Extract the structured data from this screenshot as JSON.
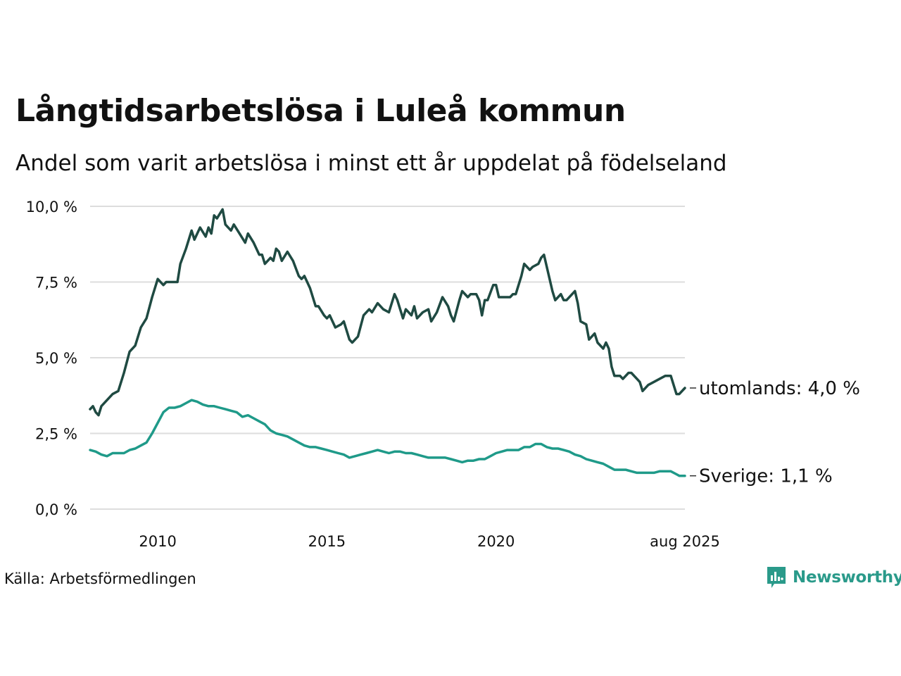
{
  "title": "Långtidsarbetslösa i Luleå kommun",
  "subtitle": "Andel som varit arbetslösa i minst ett år uppdelat på födelseland",
  "source": "Källa: Arbetsförmedlingen",
  "brand": {
    "name": "Newsworthy",
    "icon": "newsworthy-logo-icon",
    "color": "#2a9a8a"
  },
  "chart_data": {
    "type": "line",
    "ylim": [
      0,
      10
    ],
    "y_ticks": [
      0,
      2.5,
      5,
      7.5,
      10
    ],
    "y_tick_labels": [
      "0,0 %",
      "2,5 %",
      "5,0 %",
      "7,5 %",
      "10,0 %"
    ],
    "x_range": [
      "2008-01",
      "2025-08"
    ],
    "x_ticks": [
      "2010-01",
      "2015-01",
      "2020-01",
      "2025-08"
    ],
    "x_tick_labels": [
      "2010",
      "2015",
      "2020",
      "aug 2025"
    ],
    "grid": "horizontal",
    "legend": "end-of-line labels",
    "series": [
      {
        "name": "utomlands",
        "end_label": "utomlands: 4,0 %",
        "color": "#1f4a42",
        "points": [
          [
            "2008-01",
            3.3
          ],
          [
            "2008-02",
            3.4
          ],
          [
            "2008-03",
            3.2
          ],
          [
            "2008-04",
            3.1
          ],
          [
            "2008-05",
            3.4
          ],
          [
            "2008-07",
            3.6
          ],
          [
            "2008-09",
            3.8
          ],
          [
            "2008-11",
            3.9
          ],
          [
            "2009-01",
            4.5
          ],
          [
            "2009-03",
            5.2
          ],
          [
            "2009-05",
            5.4
          ],
          [
            "2009-07",
            6.0
          ],
          [
            "2009-09",
            6.3
          ],
          [
            "2009-11",
            7.0
          ],
          [
            "2010-01",
            7.6
          ],
          [
            "2010-03",
            7.4
          ],
          [
            "2010-04",
            7.5
          ],
          [
            "2010-06",
            7.5
          ],
          [
            "2010-08",
            7.5
          ],
          [
            "2010-09",
            8.1
          ],
          [
            "2010-11",
            8.6
          ],
          [
            "2011-01",
            9.2
          ],
          [
            "2011-02",
            8.9
          ],
          [
            "2011-04",
            9.3
          ],
          [
            "2011-06",
            9.0
          ],
          [
            "2011-07",
            9.3
          ],
          [
            "2011-08",
            9.1
          ],
          [
            "2011-09",
            9.7
          ],
          [
            "2011-10",
            9.6
          ],
          [
            "2011-12",
            9.9
          ],
          [
            "2012-01",
            9.4
          ],
          [
            "2012-03",
            9.2
          ],
          [
            "2012-04",
            9.4
          ],
          [
            "2012-06",
            9.1
          ],
          [
            "2012-08",
            8.8
          ],
          [
            "2012-09",
            9.1
          ],
          [
            "2012-11",
            8.8
          ],
          [
            "2013-01",
            8.4
          ],
          [
            "2013-02",
            8.4
          ],
          [
            "2013-03",
            8.1
          ],
          [
            "2013-05",
            8.3
          ],
          [
            "2013-06",
            8.2
          ],
          [
            "2013-07",
            8.6
          ],
          [
            "2013-08",
            8.5
          ],
          [
            "2013-09",
            8.2
          ],
          [
            "2013-11",
            8.5
          ],
          [
            "2014-01",
            8.2
          ],
          [
            "2014-03",
            7.7
          ],
          [
            "2014-04",
            7.6
          ],
          [
            "2014-05",
            7.7
          ],
          [
            "2014-07",
            7.3
          ],
          [
            "2014-09",
            6.7
          ],
          [
            "2014-10",
            6.7
          ],
          [
            "2014-12",
            6.4
          ],
          [
            "2015-01",
            6.3
          ],
          [
            "2015-02",
            6.4
          ],
          [
            "2015-04",
            6.0
          ],
          [
            "2015-06",
            6.1
          ],
          [
            "2015-07",
            6.2
          ],
          [
            "2015-09",
            5.6
          ],
          [
            "2015-10",
            5.5
          ],
          [
            "2015-12",
            5.7
          ],
          [
            "2016-02",
            6.4
          ],
          [
            "2016-04",
            6.6
          ],
          [
            "2016-05",
            6.5
          ],
          [
            "2016-07",
            6.8
          ],
          [
            "2016-09",
            6.6
          ],
          [
            "2016-11",
            6.5
          ],
          [
            "2017-01",
            7.1
          ],
          [
            "2017-02",
            6.9
          ],
          [
            "2017-04",
            6.3
          ],
          [
            "2017-05",
            6.6
          ],
          [
            "2017-07",
            6.4
          ],
          [
            "2017-08",
            6.7
          ],
          [
            "2017-09",
            6.3
          ],
          [
            "2017-11",
            6.5
          ],
          [
            "2018-01",
            6.6
          ],
          [
            "2018-02",
            6.2
          ],
          [
            "2018-04",
            6.5
          ],
          [
            "2018-06",
            7.0
          ],
          [
            "2018-08",
            6.7
          ],
          [
            "2018-09",
            6.4
          ],
          [
            "2018-10",
            6.2
          ],
          [
            "2018-12",
            6.9
          ],
          [
            "2019-01",
            7.2
          ],
          [
            "2019-03",
            7.0
          ],
          [
            "2019-04",
            7.1
          ],
          [
            "2019-06",
            7.1
          ],
          [
            "2019-07",
            6.9
          ],
          [
            "2019-08",
            6.4
          ],
          [
            "2019-09",
            6.9
          ],
          [
            "2019-10",
            6.9
          ],
          [
            "2019-12",
            7.4
          ],
          [
            "2020-01",
            7.4
          ],
          [
            "2020-02",
            7.0
          ],
          [
            "2020-04",
            7.0
          ],
          [
            "2020-06",
            7.0
          ],
          [
            "2020-07",
            7.1
          ],
          [
            "2020-08",
            7.1
          ],
          [
            "2020-10",
            7.7
          ],
          [
            "2020-11",
            8.1
          ],
          [
            "2021-01",
            7.9
          ],
          [
            "2021-02",
            8.0
          ],
          [
            "2021-04",
            8.1
          ],
          [
            "2021-05",
            8.3
          ],
          [
            "2021-06",
            8.4
          ],
          [
            "2021-08",
            7.6
          ],
          [
            "2021-09",
            7.2
          ],
          [
            "2021-10",
            6.9
          ],
          [
            "2021-12",
            7.1
          ],
          [
            "2022-01",
            6.9
          ],
          [
            "2022-02",
            6.9
          ],
          [
            "2022-04",
            7.1
          ],
          [
            "2022-05",
            7.2
          ],
          [
            "2022-06",
            6.8
          ],
          [
            "2022-07",
            6.2
          ],
          [
            "2022-09",
            6.1
          ],
          [
            "2022-10",
            5.6
          ],
          [
            "2022-12",
            5.8
          ],
          [
            "2023-01",
            5.5
          ],
          [
            "2023-03",
            5.3
          ],
          [
            "2023-04",
            5.5
          ],
          [
            "2023-05",
            5.3
          ],
          [
            "2023-06",
            4.7
          ],
          [
            "2023-07",
            4.4
          ],
          [
            "2023-09",
            4.4
          ],
          [
            "2023-10",
            4.3
          ],
          [
            "2023-12",
            4.5
          ],
          [
            "2024-01",
            4.5
          ],
          [
            "2024-03",
            4.3
          ],
          [
            "2024-04",
            4.2
          ],
          [
            "2024-05",
            3.9
          ],
          [
            "2024-07",
            4.1
          ],
          [
            "2024-09",
            4.2
          ],
          [
            "2024-11",
            4.3
          ],
          [
            "2025-01",
            4.4
          ],
          [
            "2025-03",
            4.4
          ],
          [
            "2025-05",
            3.8
          ],
          [
            "2025-06",
            3.8
          ],
          [
            "2025-08",
            4.0
          ]
        ]
      },
      {
        "name": "Sverige",
        "end_label": "Sverige: 1,1 %",
        "color": "#1f9a89",
        "points": [
          [
            "2008-01",
            1.95
          ],
          [
            "2008-03",
            1.9
          ],
          [
            "2008-05",
            1.8
          ],
          [
            "2008-07",
            1.75
          ],
          [
            "2008-09",
            1.85
          ],
          [
            "2008-11",
            1.85
          ],
          [
            "2009-01",
            1.85
          ],
          [
            "2009-03",
            1.95
          ],
          [
            "2009-05",
            2.0
          ],
          [
            "2009-07",
            2.1
          ],
          [
            "2009-09",
            2.2
          ],
          [
            "2009-11",
            2.5
          ],
          [
            "2010-01",
            2.85
          ],
          [
            "2010-03",
            3.2
          ],
          [
            "2010-05",
            3.35
          ],
          [
            "2010-07",
            3.35
          ],
          [
            "2010-09",
            3.4
          ],
          [
            "2010-11",
            3.5
          ],
          [
            "2011-01",
            3.6
          ],
          [
            "2011-03",
            3.55
          ],
          [
            "2011-05",
            3.45
          ],
          [
            "2011-07",
            3.4
          ],
          [
            "2011-09",
            3.4
          ],
          [
            "2011-11",
            3.35
          ],
          [
            "2012-01",
            3.3
          ],
          [
            "2012-03",
            3.25
          ],
          [
            "2012-05",
            3.2
          ],
          [
            "2012-07",
            3.05
          ],
          [
            "2012-09",
            3.1
          ],
          [
            "2012-11",
            3.0
          ],
          [
            "2013-01",
            2.9
          ],
          [
            "2013-03",
            2.8
          ],
          [
            "2013-05",
            2.6
          ],
          [
            "2013-07",
            2.5
          ],
          [
            "2013-09",
            2.45
          ],
          [
            "2013-11",
            2.4
          ],
          [
            "2014-01",
            2.3
          ],
          [
            "2014-03",
            2.2
          ],
          [
            "2014-05",
            2.1
          ],
          [
            "2014-07",
            2.05
          ],
          [
            "2014-09",
            2.05
          ],
          [
            "2014-11",
            2.0
          ],
          [
            "2015-01",
            1.95
          ],
          [
            "2015-03",
            1.9
          ],
          [
            "2015-05",
            1.85
          ],
          [
            "2015-07",
            1.8
          ],
          [
            "2015-09",
            1.7
          ],
          [
            "2015-11",
            1.75
          ],
          [
            "2016-01",
            1.8
          ],
          [
            "2016-03",
            1.85
          ],
          [
            "2016-05",
            1.9
          ],
          [
            "2016-07",
            1.95
          ],
          [
            "2016-09",
            1.9
          ],
          [
            "2016-11",
            1.85
          ],
          [
            "2017-01",
            1.9
          ],
          [
            "2017-03",
            1.9
          ],
          [
            "2017-05",
            1.85
          ],
          [
            "2017-07",
            1.85
          ],
          [
            "2017-09",
            1.8
          ],
          [
            "2017-11",
            1.75
          ],
          [
            "2018-01",
            1.7
          ],
          [
            "2018-03",
            1.7
          ],
          [
            "2018-05",
            1.7
          ],
          [
            "2018-07",
            1.7
          ],
          [
            "2018-09",
            1.65
          ],
          [
            "2018-11",
            1.6
          ],
          [
            "2019-01",
            1.55
          ],
          [
            "2019-03",
            1.6
          ],
          [
            "2019-05",
            1.6
          ],
          [
            "2019-07",
            1.65
          ],
          [
            "2019-09",
            1.65
          ],
          [
            "2019-11",
            1.75
          ],
          [
            "2020-01",
            1.85
          ],
          [
            "2020-03",
            1.9
          ],
          [
            "2020-05",
            1.95
          ],
          [
            "2020-07",
            1.95
          ],
          [
            "2020-09",
            1.95
          ],
          [
            "2020-11",
            2.05
          ],
          [
            "2021-01",
            2.05
          ],
          [
            "2021-03",
            2.15
          ],
          [
            "2021-05",
            2.15
          ],
          [
            "2021-07",
            2.05
          ],
          [
            "2021-09",
            2.0
          ],
          [
            "2021-11",
            2.0
          ],
          [
            "2022-01",
            1.95
          ],
          [
            "2022-03",
            1.9
          ],
          [
            "2022-05",
            1.8
          ],
          [
            "2022-07",
            1.75
          ],
          [
            "2022-09",
            1.65
          ],
          [
            "2022-11",
            1.6
          ],
          [
            "2023-01",
            1.55
          ],
          [
            "2023-03",
            1.5
          ],
          [
            "2023-05",
            1.4
          ],
          [
            "2023-07",
            1.3
          ],
          [
            "2023-09",
            1.3
          ],
          [
            "2023-11",
            1.3
          ],
          [
            "2024-01",
            1.25
          ],
          [
            "2024-03",
            1.2
          ],
          [
            "2024-05",
            1.2
          ],
          [
            "2024-07",
            1.2
          ],
          [
            "2024-09",
            1.2
          ],
          [
            "2024-11",
            1.25
          ],
          [
            "2025-01",
            1.25
          ],
          [
            "2025-03",
            1.25
          ],
          [
            "2025-05",
            1.15
          ],
          [
            "2025-06",
            1.1
          ],
          [
            "2025-08",
            1.1
          ]
        ]
      }
    ]
  }
}
